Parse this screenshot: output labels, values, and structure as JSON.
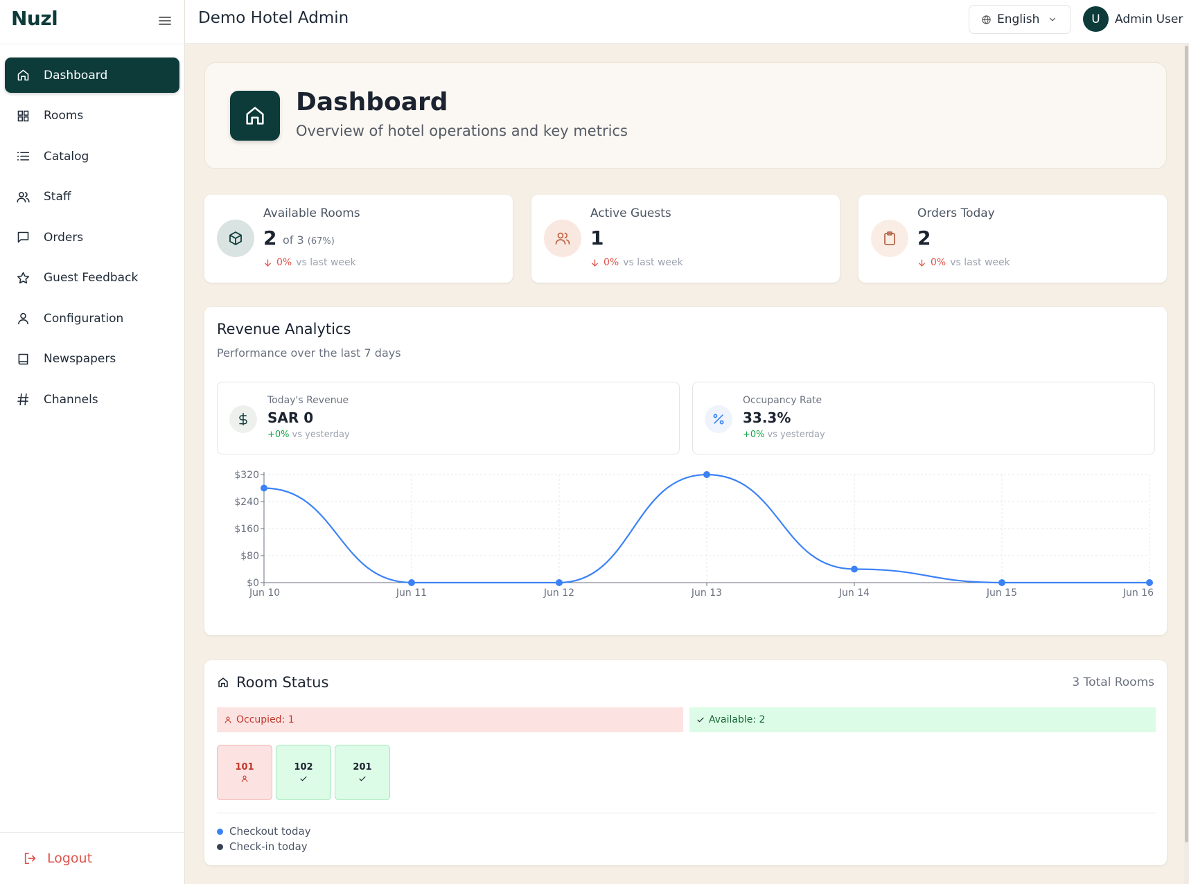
{
  "app": {
    "brand": "Nuzl",
    "title": "Demo Hotel Admin"
  },
  "header": {
    "language": "English",
    "user_initial": "U",
    "user_name": "Admin User"
  },
  "sidebar": {
    "items": [
      {
        "label": "Dashboard",
        "icon": "home-icon",
        "active": true
      },
      {
        "label": "Rooms",
        "icon": "grid-icon"
      },
      {
        "label": "Catalog",
        "icon": "list-icon"
      },
      {
        "label": "Staff",
        "icon": "users-icon"
      },
      {
        "label": "Orders",
        "icon": "message-square-icon"
      },
      {
        "label": "Guest Feedback",
        "icon": "star-icon"
      },
      {
        "label": "Configuration",
        "icon": "user-icon"
      },
      {
        "label": "Newspapers",
        "icon": "book-icon"
      },
      {
        "label": "Channels",
        "icon": "hash-icon"
      }
    ],
    "logout": "Logout"
  },
  "hero": {
    "title": "Dashboard",
    "subtitle": "Overview of hotel operations and key metrics"
  },
  "stats": [
    {
      "label": "Available Rooms",
      "value": "2",
      "extra": "of 3",
      "extra_pct": "(67%)",
      "trend_pct": "0%",
      "trend_text": "vs last week",
      "icon": "box-icon"
    },
    {
      "label": "Active Guests",
      "value": "1",
      "trend_pct": "0%",
      "trend_text": "vs last week",
      "icon": "users-icon"
    },
    {
      "label": "Orders Today",
      "value": "2",
      "trend_pct": "0%",
      "trend_text": "vs last week",
      "icon": "clipboard-icon"
    }
  ],
  "revenue": {
    "title": "Revenue Analytics",
    "subtitle": "Performance over the last 7 days",
    "today_revenue": {
      "label": "Today's Revenue",
      "value": "SAR 0",
      "trend": "+0%",
      "trend_text": "vs yesterday",
      "icon": "dollar-icon"
    },
    "occupancy": {
      "label": "Occupancy Rate",
      "value": "33.3%",
      "trend": "+0%",
      "trend_text": "vs yesterday",
      "icon": "percent-icon"
    }
  },
  "chart_data": {
    "type": "line",
    "x": [
      "Jun 10",
      "Jun 11",
      "Jun 12",
      "Jun 13",
      "Jun 14",
      "Jun 15",
      "Jun 16"
    ],
    "series": [
      {
        "values": [
          280,
          0,
          0,
          322,
          40,
          0,
          0
        ]
      }
    ],
    "yticks": [
      "$0",
      "$80",
      "$160",
      "$240",
      "$320"
    ],
    "ylim": [
      0,
      320
    ],
    "grid": true,
    "color": "#3b82f6"
  },
  "room_status": {
    "title": "Room Status",
    "total": "3 Total Rooms",
    "occupied_label": "Occupied: 1",
    "available_label": "Available: 2",
    "rooms": [
      {
        "number": "101",
        "status": "occupied"
      },
      {
        "number": "102",
        "status": "available"
      },
      {
        "number": "201",
        "status": "available"
      }
    ],
    "legend": [
      {
        "label": "Checkout today",
        "color": "#3b82f6"
      },
      {
        "label": "Check-in today",
        "color": "#374151"
      }
    ]
  },
  "colors": {
    "brand": "#0d3b3a",
    "background": "#f5efe5",
    "danger": "#e0524a",
    "success": "#16a34a"
  }
}
